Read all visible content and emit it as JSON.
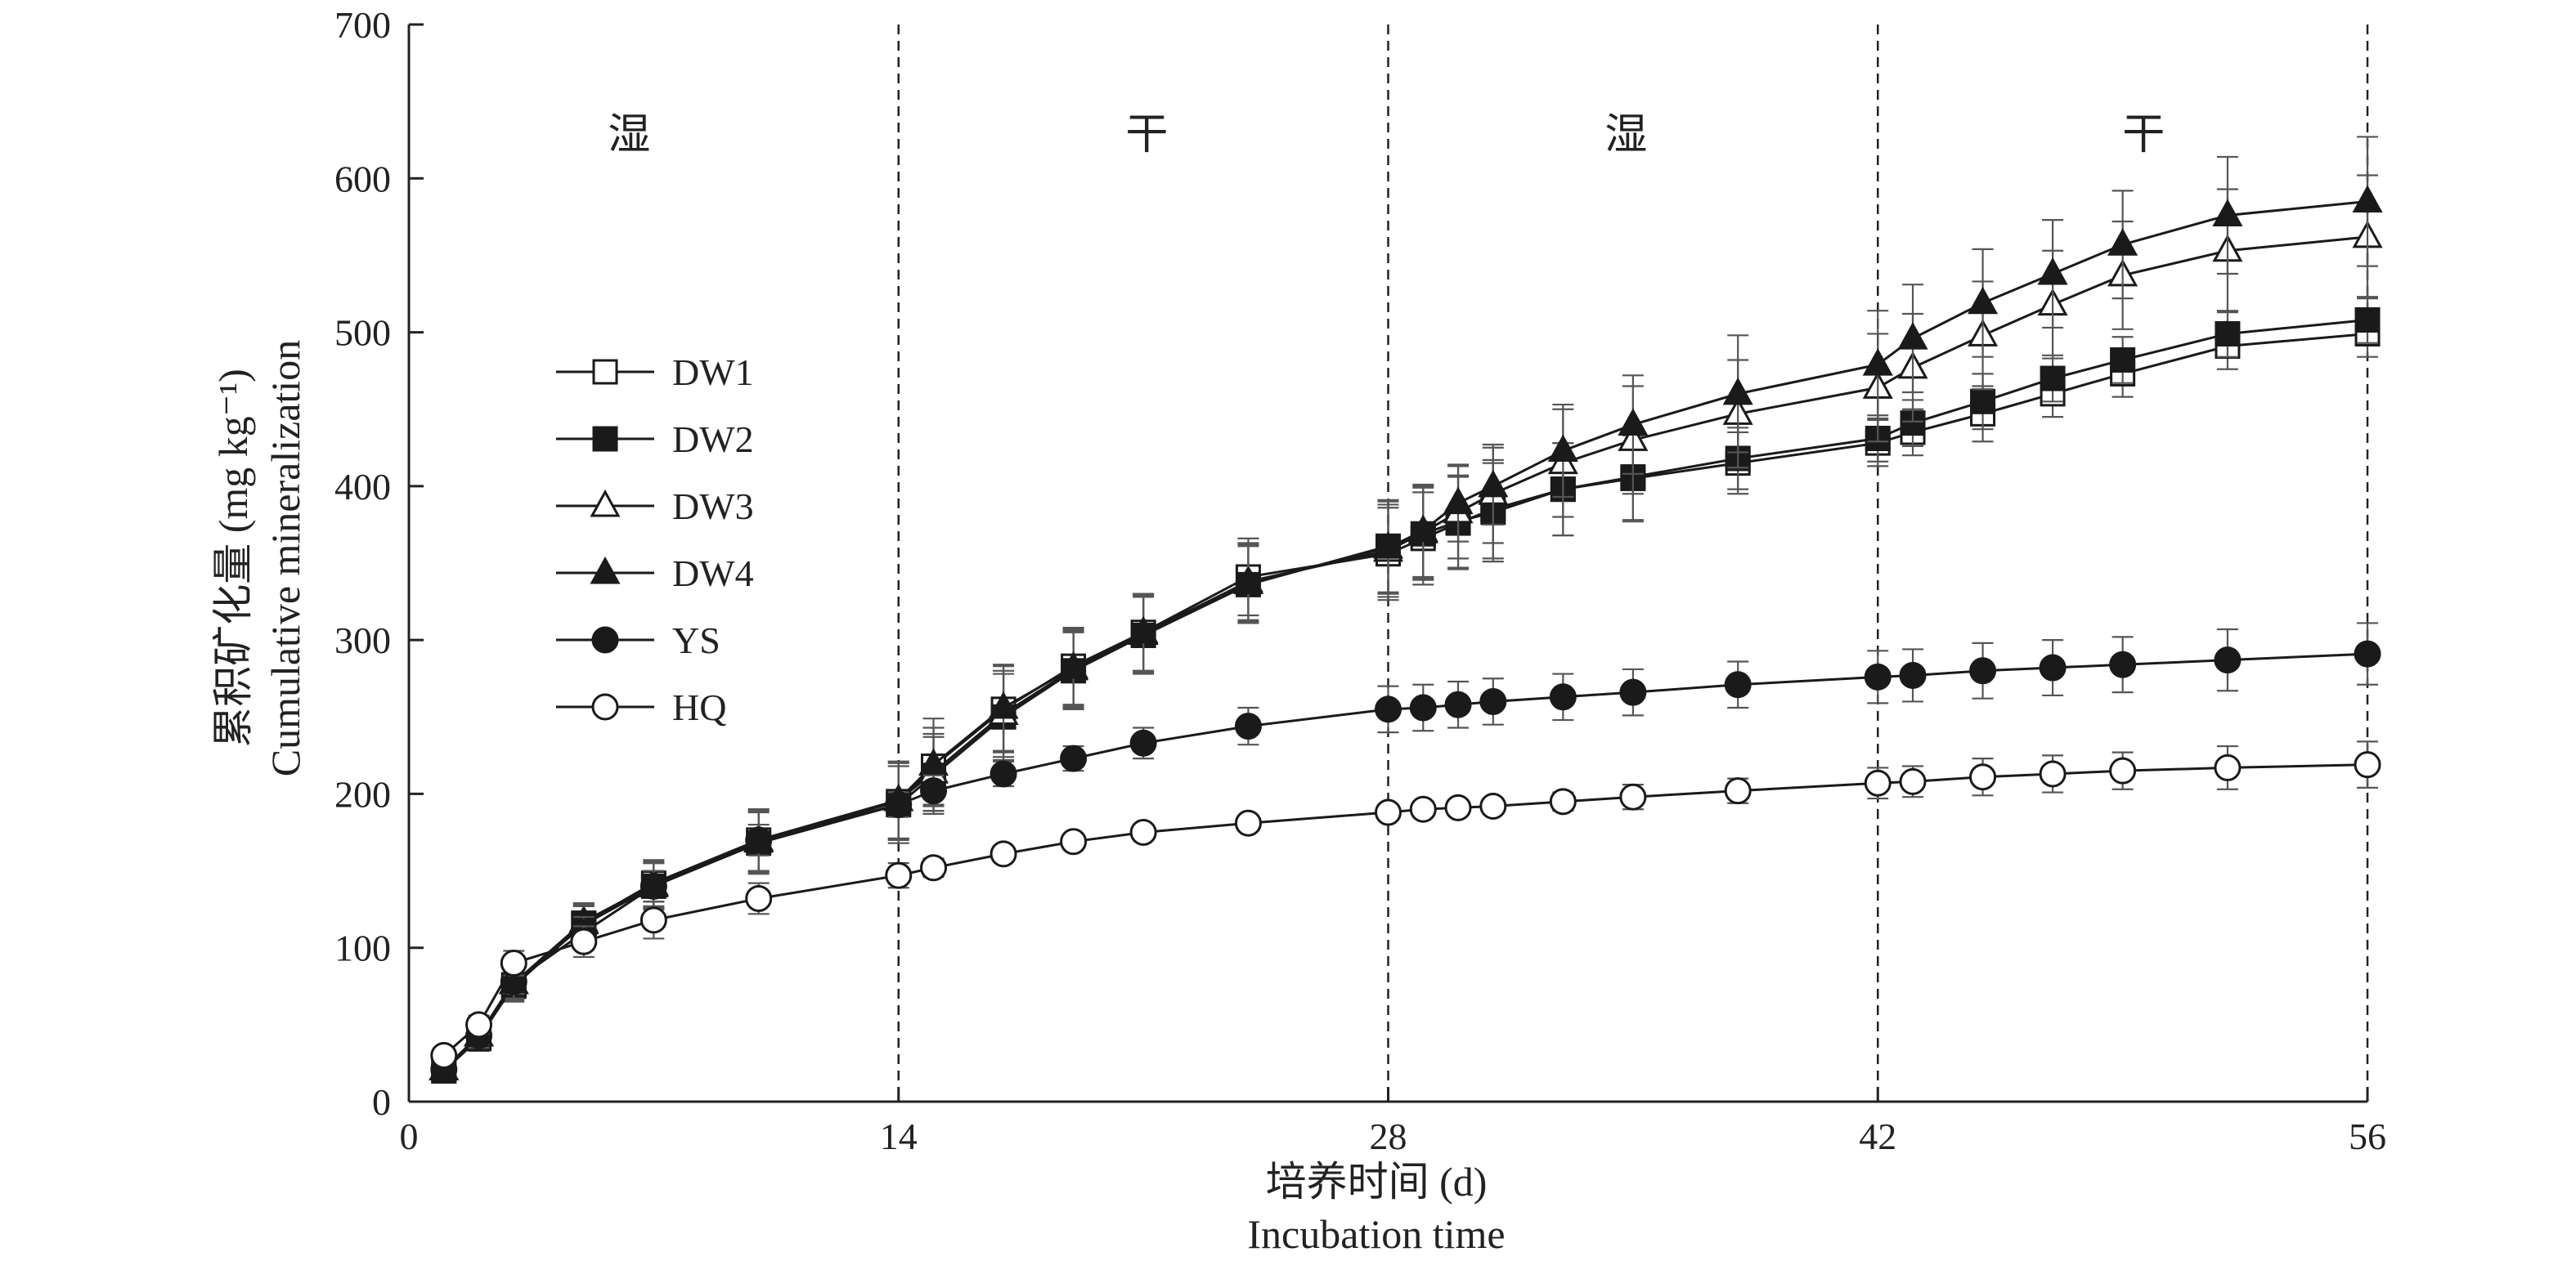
{
  "chart_data": {
    "type": "line",
    "xlabel_cn": "培养时间 (d)",
    "xlabel_en": "Incubation time",
    "ylabel_cn": "累积矿化量 (mg kg⁻¹)",
    "ylabel_en": "Cumulative mineralization",
    "xlim": [
      0,
      56
    ],
    "ylim": [
      0,
      700
    ],
    "x_ticks": [
      "0",
      "14",
      "28",
      "42",
      "56"
    ],
    "y_ticks": [
      "0",
      "100",
      "200",
      "300",
      "400",
      "500",
      "600",
      "700"
    ],
    "phase_boundaries": [
      14,
      28,
      42,
      56
    ],
    "phases": [
      {
        "label": "湿",
        "x": 6.3
      },
      {
        "label": "干",
        "x": 21.1
      },
      {
        "label": "湿",
        "x": 34.8
      },
      {
        "label": "干",
        "x": 49.6
      }
    ],
    "grid": false,
    "legend_position": "left-middle",
    "x": [
      1,
      2,
      3,
      5,
      7,
      10,
      14,
      15,
      17,
      19,
      21,
      24,
      28,
      29,
      30,
      31,
      33,
      35,
      38,
      42,
      43,
      45,
      47,
      49,
      52,
      56
    ],
    "series": [
      {
        "name": "DW1",
        "marker": "square",
        "filled": false,
        "values": [
          20,
          42,
          75,
          116,
          142,
          170,
          195,
          218,
          255,
          283,
          305,
          341,
          356,
          366,
          376,
          385,
          398,
          405,
          415,
          428,
          435,
          447,
          460,
          473,
          491,
          499
        ],
        "errors": [
          6,
          8,
          10,
          12,
          15,
          20,
          25,
          25,
          28,
          25,
          25,
          25,
          30,
          30,
          30,
          32,
          30,
          28,
          20,
          15,
          15,
          18,
          15,
          15,
          15,
          15
        ]
      },
      {
        "name": "DW2",
        "marker": "square",
        "filled": true,
        "values": [
          20,
          41,
          76,
          115,
          140,
          168,
          193,
          212,
          250,
          280,
          303,
          336,
          361,
          369,
          377,
          383,
          398,
          406,
          418,
          431,
          441,
          455,
          470,
          482,
          499,
          508
        ],
        "errors": [
          6,
          8,
          10,
          12,
          15,
          20,
          25,
          25,
          28,
          25,
          25,
          25,
          30,
          30,
          30,
          32,
          30,
          28,
          20,
          15,
          15,
          18,
          15,
          15,
          15,
          15
        ]
      },
      {
        "name": "DW3",
        "marker": "triangle",
        "filled": false,
        "values": [
          21,
          43,
          77,
          117,
          141,
          170,
          196,
          214,
          252,
          281,
          304,
          338,
          358,
          370,
          383,
          395,
          415,
          430,
          447,
          464,
          477,
          498,
          518,
          537,
          553,
          562
        ],
        "errors": [
          6,
          8,
          10,
          12,
          15,
          20,
          25,
          25,
          28,
          25,
          25,
          25,
          30,
          30,
          30,
          32,
          35,
          35,
          35,
          35,
          35,
          35,
          35,
          35,
          40,
          40
        ]
      },
      {
        "name": "DW4",
        "marker": "triangle",
        "filled": true,
        "values": [
          21,
          43,
          77,
          116,
          140,
          169,
          196,
          219,
          256,
          282,
          305,
          337,
          360,
          371,
          389,
          400,
          423,
          440,
          460,
          479,
          496,
          519,
          538,
          557,
          576,
          585
        ],
        "errors": [
          6,
          8,
          10,
          12,
          15,
          20,
          25,
          30,
          28,
          25,
          25,
          25,
          30,
          30,
          25,
          25,
          30,
          32,
          38,
          35,
          35,
          35,
          35,
          35,
          38,
          42
        ]
      },
      {
        "name": "YS",
        "marker": "circle",
        "filled": true,
        "values": [
          21,
          43,
          78,
          110,
          140,
          170,
          193,
          202,
          213,
          223,
          233,
          244,
          255,
          256,
          258,
          260,
          263,
          266,
          271,
          276,
          277,
          280,
          282,
          284,
          287,
          291
        ],
        "errors": [
          5,
          6,
          8,
          10,
          10,
          10,
          8,
          10,
          8,
          8,
          10,
          12,
          15,
          15,
          15,
          15,
          15,
          15,
          15,
          17,
          17,
          18,
          18,
          18,
          20,
          20
        ]
      },
      {
        "name": "HQ",
        "marker": "circle",
        "filled": false,
        "values": [
          30,
          50,
          90,
          104,
          118,
          132,
          147,
          152,
          161,
          169,
          175,
          181,
          188,
          190,
          191,
          192,
          195,
          198,
          202,
          207,
          208,
          211,
          213,
          215,
          217,
          219
        ],
        "errors": [
          5,
          6,
          8,
          10,
          12,
          10,
          8,
          6,
          5,
          5,
          5,
          5,
          5,
          5,
          5,
          5,
          6,
          8,
          8,
          10,
          10,
          12,
          12,
          12,
          14,
          15
        ]
      }
    ]
  }
}
